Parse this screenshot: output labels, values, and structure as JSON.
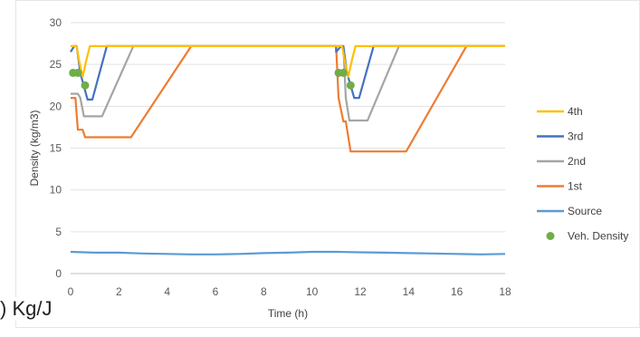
{
  "side_text": ") Kg/J",
  "chart_data": {
    "type": "line",
    "title": "",
    "xlabel": "Time (h)",
    "ylabel": "Density (kg/m3)",
    "xlim": [
      0,
      18
    ],
    "ylim": [
      0,
      30
    ],
    "xticks": [
      0,
      2,
      4,
      6,
      8,
      10,
      12,
      14,
      16,
      18
    ],
    "yticks": [
      0,
      5,
      10,
      15,
      20,
      25,
      30
    ],
    "grid": "horizontal",
    "legend_position": "right",
    "series": [
      {
        "name": "4th",
        "color": "#ffc000",
        "x": [
          0,
          0.25,
          0.35,
          0.5,
          0.65,
          0.8,
          1.1,
          11.0,
          11.25,
          11.35,
          11.5,
          11.65,
          11.8,
          12.1,
          18
        ],
        "y": [
          27.2,
          27.2,
          25.5,
          23.5,
          25.5,
          27.2,
          27.2,
          27.2,
          27.2,
          25.5,
          23.5,
          25.5,
          27.2,
          27.2,
          27.2
        ]
      },
      {
        "name": "3rd",
        "color": "#4472c4",
        "x": [
          0,
          0.15,
          0.25,
          0.4,
          0.7,
          0.9,
          1.5,
          18
        ],
        "y": [
          26.5,
          27.2,
          27.2,
          24.0,
          20.8,
          20.8,
          27.2,
          27.2
        ],
        "x2": [
          11.0,
          11.2,
          11.3,
          11.45,
          11.75,
          11.95,
          12.55,
          18
        ],
        "y2": [
          26.5,
          27.2,
          27.2,
          24.0,
          21.0,
          21.0,
          27.2,
          27.2
        ]
      },
      {
        "name": "2nd",
        "color": "#a5a5a5",
        "x": [
          0,
          0.3,
          0.4,
          0.55,
          1.3,
          2.6,
          11.3,
          11.4,
          11.55,
          12.3,
          13.6,
          18
        ],
        "y": [
          21.5,
          21.5,
          21.0,
          18.8,
          18.8,
          27.2,
          27.2,
          21.0,
          18.3,
          18.3,
          27.2,
          27.2
        ]
      },
      {
        "name": "1st",
        "color": "#ed7d31",
        "x": [
          0,
          0.2,
          0.3,
          0.5,
          0.6,
          2.5,
          5.0,
          11.0,
          11.1,
          11.3,
          11.4,
          11.6,
          13.9,
          16.4,
          18
        ],
        "y": [
          21.0,
          21.0,
          17.2,
          17.2,
          16.3,
          16.3,
          27.2,
          27.2,
          21.0,
          18.2,
          18.2,
          14.6,
          14.6,
          27.2,
          27.2
        ]
      },
      {
        "name": "Source",
        "color": "#5b9bd5",
        "x": [
          0,
          1,
          2,
          3,
          4,
          5,
          6,
          7,
          8,
          9,
          10,
          11,
          12,
          13,
          14,
          15,
          16,
          17,
          18
        ],
        "y": [
          2.6,
          2.5,
          2.5,
          2.4,
          2.35,
          2.3,
          2.3,
          2.35,
          2.45,
          2.5,
          2.6,
          2.6,
          2.55,
          2.5,
          2.45,
          2.4,
          2.35,
          2.3,
          2.35
        ]
      },
      {
        "name": "Veh. Density",
        "color": "#70ad47",
        "kind": "scatter",
        "x": [
          0.1,
          0.3,
          0.6,
          11.1,
          11.3,
          11.6
        ],
        "y": [
          24.0,
          24.0,
          22.5,
          24.0,
          24.0,
          22.5
        ]
      }
    ]
  }
}
